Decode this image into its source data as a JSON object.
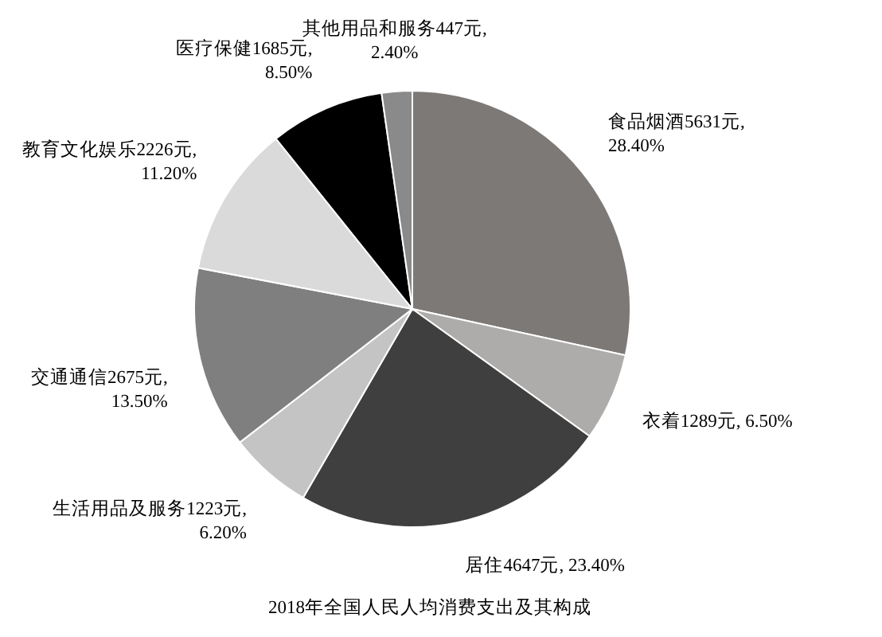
{
  "chart_data": {
    "type": "pie",
    "title": "2018年全国人民人均消费支出及其构成",
    "categories": [
      "食品烟酒",
      "衣着",
      "居住",
      "生活用品及服务",
      "交通通信",
      "教育文化娱乐",
      "医疗保健",
      "其他用品和服务"
    ],
    "values": [
      5631,
      1289,
      4647,
      1223,
      2675,
      2226,
      1685,
      447
    ],
    "value_labels": [
      "5631元, 28.40%",
      "1289元, 6.50%",
      "4647元, 23.40%",
      "1223元, 6.20%",
      "2675元, 13.50%",
      "2226元, 11.20%",
      "1685元, 8.50%",
      "447元, 2.40%"
    ],
    "colors": [
      "#7d7977",
      "#aeacaa",
      "#3f3f3f",
      "#c4c4c4",
      "#7f7f7f",
      "#dadada",
      "#000000",
      "#8a8a8a"
    ]
  }
}
